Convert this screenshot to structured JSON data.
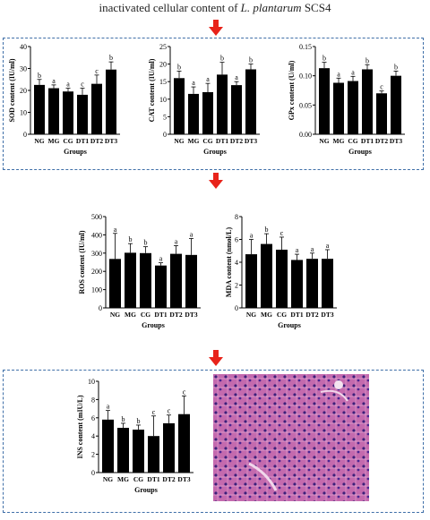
{
  "header": {
    "prefix": "inactivated cellular content of ",
    "italic": "L. plantarum",
    "suffix": " SCS4"
  },
  "colors": {
    "bar": "#000000",
    "arrow": "#e8231a",
    "box": "#3f6fa8",
    "tissue": "#b04a9c"
  },
  "chart_data": [
    {
      "type": "bar",
      "categories": [
        "NG",
        "MG",
        "CG",
        "DT1",
        "DT2",
        "DT3"
      ],
      "values": [
        22.5,
        21,
        19.5,
        18,
        23,
        29.5
      ],
      "errors": [
        2.5,
        1.5,
        1.5,
        3,
        4,
        3.5
      ],
      "letters": [
        "b",
        "a",
        "a",
        "c",
        "c",
        "b"
      ],
      "ylabel": "SOD content (IU/ml)",
      "xlabel": "Groups",
      "ylim": [
        0,
        40
      ],
      "yticks": [
        0,
        10,
        20,
        30,
        40
      ]
    },
    {
      "type": "bar",
      "categories": [
        "NG",
        "MG",
        "CG",
        "DT1",
        "DT2",
        "DT3"
      ],
      "values": [
        16,
        11.5,
        12,
        17,
        14,
        18.5
      ],
      "errors": [
        2,
        2,
        2.5,
        3.5,
        1,
        1.5
      ],
      "letters": [
        "b",
        "a",
        "a",
        "b",
        "a",
        "b"
      ],
      "ylabel": "CAT content (IU/ml)",
      "xlabel": "Groups",
      "ylim": [
        0,
        25
      ],
      "yticks": [
        0,
        5,
        10,
        15,
        20,
        25
      ]
    },
    {
      "type": "bar",
      "categories": [
        "NG",
        "MG",
        "CG",
        "DT1",
        "DT2",
        "DT3"
      ],
      "values": [
        0.113,
        0.088,
        0.091,
        0.111,
        0.07,
        0.1
      ],
      "errors": [
        0.01,
        0.008,
        0.008,
        0.008,
        0.004,
        0.008
      ],
      "letters": [
        "b",
        "a",
        "a",
        "b",
        "c",
        "b"
      ],
      "ylabel": "GPx content (U/ml)",
      "xlabel": "Groups",
      "ylim": [
        0,
        0.15
      ],
      "yticks": [
        "0.00",
        "0.05",
        "0.10",
        "0.15"
      ]
    },
    {
      "type": "bar",
      "categories": [
        "NG",
        "MG",
        "CG",
        "DT1",
        "DT2",
        "DT3"
      ],
      "values": [
        268,
        302,
        300,
        232,
        296,
        290
      ],
      "errors": [
        140,
        50,
        35,
        15,
        45,
        90
      ],
      "letters": [
        "a",
        "b",
        "b",
        "a",
        "a",
        "a"
      ],
      "ylabel": "ROS content (IU/ml)",
      "xlabel": "Groups",
      "ylim": [
        0,
        500
      ],
      "yticks": [
        0,
        100,
        200,
        300,
        400,
        500
      ]
    },
    {
      "type": "bar",
      "categories": [
        "NG",
        "MG",
        "CG",
        "DT1",
        "DT2",
        "DT3"
      ],
      "values": [
        4.7,
        5.6,
        5.1,
        4.2,
        4.3,
        4.3
      ],
      "errors": [
        1.3,
        0.9,
        1.1,
        0.5,
        0.5,
        0.8
      ],
      "letters": [
        "a",
        "b",
        "c",
        "a",
        "a",
        "a"
      ],
      "ylabel": "MDA content (nmol/L)",
      "xlabel": "Groups",
      "ylim": [
        0,
        8
      ],
      "yticks": [
        0,
        2,
        4,
        6,
        8
      ]
    },
    {
      "type": "bar",
      "categories": [
        "NG",
        "MG",
        "CG",
        "DT1",
        "DT2",
        "DT3"
      ],
      "values": [
        5.8,
        4.9,
        4.7,
        4,
        5.4,
        6.4
      ],
      "errors": [
        1,
        0.5,
        0.5,
        2.2,
        0.9,
        2
      ],
      "letters": [
        "a",
        "b",
        "b",
        "c",
        "c",
        "c"
      ],
      "ylabel": "INS content (mIU/L)",
      "xlabel": "Groups",
      "ylim": [
        0,
        10
      ],
      "yticks": [
        0,
        2,
        4,
        6,
        8,
        10
      ]
    }
  ]
}
